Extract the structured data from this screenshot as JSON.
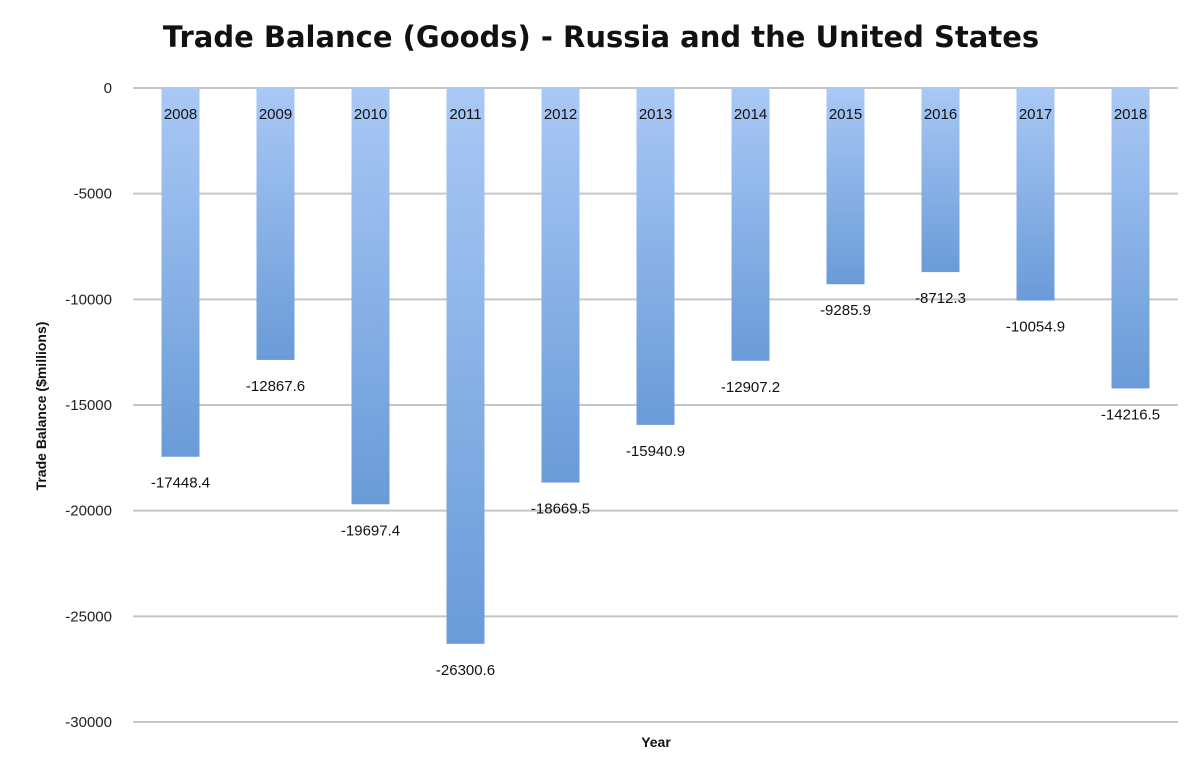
{
  "chart_data": {
    "type": "bar",
    "title": "Trade Balance (Goods) - Russia and the United States",
    "xlabel": "Year",
    "ylabel": "Trade Balance ($millions)",
    "categories": [
      "2008",
      "2009",
      "2010",
      "2011",
      "2012",
      "2013",
      "2014",
      "2015",
      "2016",
      "2017",
      "2018"
    ],
    "values": [
      -17448.4,
      -12867.6,
      -19697.4,
      -26300.6,
      -18669.5,
      -15940.9,
      -12907.2,
      -9285.9,
      -8712.3,
      -10054.9,
      -14216.5
    ],
    "value_labels": [
      "-17448.4",
      "-12867.6",
      "-19697.4",
      "-26300.6",
      "-18669.5",
      "-15940.9",
      "-12907.2",
      "-9285.9",
      "-8712.3",
      "-10054.9",
      "-14216.5"
    ],
    "ylim": [
      -30000,
      0
    ],
    "yticks": [
      0,
      -5000,
      -10000,
      -15000,
      -20000,
      -25000,
      -30000
    ],
    "ytick_labels": [
      "0",
      "-5000",
      "-10000",
      "-15000",
      "-20000",
      "-25000",
      "-30000"
    ],
    "grid": true,
    "legend": "none",
    "bar_color_top": "#a9c8f5",
    "bar_color_bottom": "#6a9bd8",
    "gridline_color": "#c6c6c6"
  }
}
